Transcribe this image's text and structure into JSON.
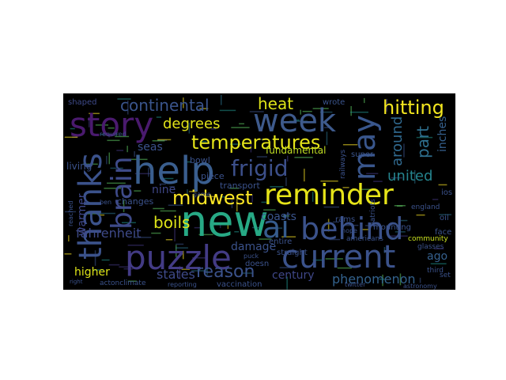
{
  "wordcloud": {
    "background": "#000000",
    "words": [
      {
        "text": "story",
        "color": "#4a1a6e"
      },
      {
        "text": "week",
        "color": "#3e5a8c"
      },
      {
        "text": "help",
        "color": "#3a5e8e"
      },
      {
        "text": "new",
        "color": "#27a985"
      },
      {
        "text": "puzzle",
        "color": "#433b85"
      },
      {
        "text": "thanks",
        "color": "#3b528b"
      },
      {
        "text": "brain",
        "color": "#3e4a89"
      },
      {
        "text": "current",
        "color": "#3b528b"
      },
      {
        "text": "ai",
        "color": "#365c8d"
      },
      {
        "text": "behind",
        "color": "#3b528b"
      },
      {
        "text": "reminder",
        "color": "#e6e419"
      },
      {
        "text": "may",
        "color": "#39568c"
      },
      {
        "text": "hitting",
        "color": "#f3e61f"
      },
      {
        "text": "temperatures",
        "color": "#e5e419"
      },
      {
        "text": "frigid",
        "color": "#3c4f8a"
      },
      {
        "text": "midwest",
        "color": "#fde725"
      },
      {
        "text": "continental",
        "color": "#3a548c"
      },
      {
        "text": "degrees",
        "color": "#e2e418"
      },
      {
        "text": "heat",
        "color": "#dde318"
      },
      {
        "text": "reason",
        "color": "#3b528b"
      },
      {
        "text": "united",
        "color": "#25848e"
      },
      {
        "text": "part",
        "color": "#2e6f8e"
      },
      {
        "text": "around",
        "color": "#30698e"
      },
      {
        "text": "inches",
        "color": "#35608d"
      },
      {
        "text": "boils",
        "color": "#dde318"
      },
      {
        "text": "fahrenheit",
        "color": "#3e4a89"
      },
      {
        "text": "states",
        "color": "#3e4a89"
      },
      {
        "text": "phenomenon",
        "color": "#33628d"
      },
      {
        "text": "century",
        "color": "#3f4788"
      },
      {
        "text": "coasts",
        "color": "#3a548c"
      },
      {
        "text": "damage",
        "color": "#3b528b"
      },
      {
        "text": "higher",
        "color": "#dde318"
      },
      {
        "text": "warmer",
        "color": "#3f4889"
      },
      {
        "text": "seas",
        "color": "#3b528b"
      },
      {
        "text": "nine",
        "color": "#3f4788"
      },
      {
        "text": "ago",
        "color": "#35608d"
      },
      {
        "text": "fundamental",
        "color": "#c2df23"
      },
      {
        "text": "transport",
        "color": "#3b528b"
      },
      {
        "text": "changes",
        "color": "#3b528b"
      },
      {
        "text": "bowl",
        "color": "#3b528b"
      },
      {
        "text": "piece",
        "color": "#3b528b"
      },
      {
        "text": "living",
        "color": "#3b528b"
      },
      {
        "text": "shaped",
        "color": "#3e4a89"
      },
      {
        "text": "wrote",
        "color": "#3a548c"
      },
      {
        "text": "super",
        "color": "#3a548c"
      },
      {
        "text": "ben",
        "color": "#3b528b"
      },
      {
        "text": "required",
        "color": "#3b528b"
      },
      {
        "text": "reached",
        "color": "#3b528b"
      },
      {
        "text": "game",
        "color": "#3b528b"
      },
      {
        "text": "entire",
        "color": "#3b528b"
      },
      {
        "text": "railways",
        "color": "#3b528b"
      },
      {
        "text": "rams",
        "color": "#3b528b"
      },
      {
        "text": "patriots",
        "color": "#3b528b"
      },
      {
        "text": "england",
        "color": "#3b528b"
      },
      {
        "text": "oil",
        "color": "#3b528b"
      },
      {
        "text": "ios",
        "color": "#3b528b"
      },
      {
        "text": "americans",
        "color": "#3b528b"
      },
      {
        "text": "mounting",
        "color": "#3b528b"
      },
      {
        "text": "face",
        "color": "#3b528b"
      },
      {
        "text": "community",
        "color": "#c8e020"
      },
      {
        "text": "glasses",
        "color": "#3b528b"
      },
      {
        "text": "third",
        "color": "#3b528b"
      },
      {
        "text": "set",
        "color": "#3b528b"
      },
      {
        "text": "nope",
        "color": "#3b528b"
      },
      {
        "text": "puck",
        "color": "#3b528b"
      },
      {
        "text": "straight",
        "color": "#3b528b"
      },
      {
        "text": "doesn",
        "color": "#3b528b"
      },
      {
        "text": "vaccination",
        "color": "#3b528b"
      },
      {
        "text": "actonclimate",
        "color": "#3b528b"
      },
      {
        "text": "reporting",
        "color": "#3b528b"
      },
      {
        "text": "twitter",
        "color": "#3b528b"
      },
      {
        "text": "astronomy",
        "color": "#3b528b"
      },
      {
        "text": "right",
        "color": "#3b528b"
      }
    ]
  }
}
